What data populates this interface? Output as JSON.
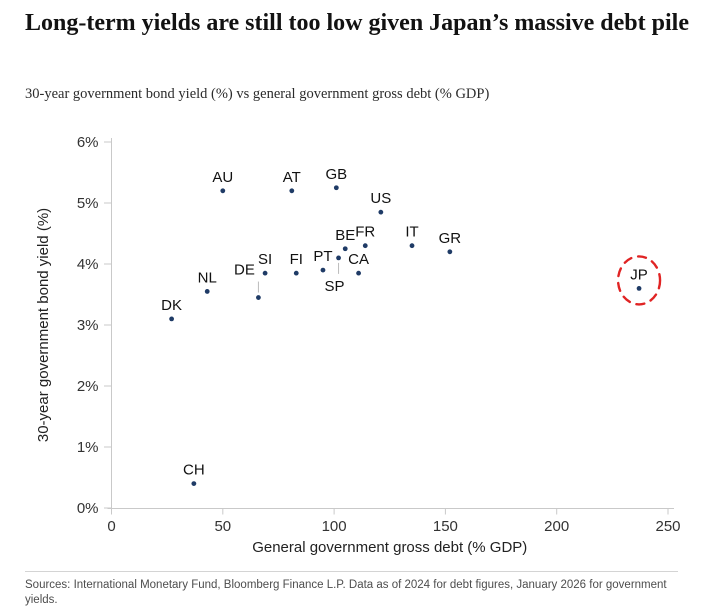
{
  "header": {
    "title": "Long-term yields are still too low given Japan’s massive debt pile",
    "subtitle": "30-year government bond yield (%) vs general government gross debt (% GDP)"
  },
  "footer": {
    "sources": "Sources: International Monetary Fund, Bloomberg Finance L.P. Data as of 2024 for debt figures, January 2026 for government yields."
  },
  "colors": {
    "dot": "#1f3b66",
    "highlight_circle": "#e02424",
    "axis": "#c9c9c9",
    "leader_line": "#bbbbbb",
    "tick_text": "#333333",
    "point_label": "#111111"
  },
  "chart_data": {
    "type": "scatter",
    "title": "Long-term yields are still too low given Japan’s massive debt pile",
    "xlabel": "General government gross debt (% GDP)",
    "ylabel": "30-year government bond yield (%)",
    "xlim": [
      0,
      250
    ],
    "ylim": [
      0,
      6
    ],
    "x_ticks": [
      0,
      50,
      100,
      150,
      200,
      250
    ],
    "y_tick_labels": [
      "0%",
      "1%",
      "2%",
      "3%",
      "4%",
      "5%",
      "6%"
    ],
    "grid": false,
    "legend": "none",
    "points": [
      {
        "label": "DK",
        "x": 27,
        "y": 3.1,
        "label_pos": "above"
      },
      {
        "label": "CH",
        "x": 37,
        "y": 0.4,
        "label_pos": "above"
      },
      {
        "label": "NL",
        "x": 43,
        "y": 3.55,
        "label_pos": "above"
      },
      {
        "label": "AU",
        "x": 50,
        "y": 5.2,
        "label_pos": "above"
      },
      {
        "label": "DE",
        "x": 66,
        "y": 3.45,
        "label_pos": "upper-left",
        "leader": true
      },
      {
        "label": "SI",
        "x": 69,
        "y": 3.85,
        "label_pos": "above"
      },
      {
        "label": "AT",
        "x": 81,
        "y": 5.2,
        "label_pos": "above"
      },
      {
        "label": "FI",
        "x": 83,
        "y": 3.85,
        "label_pos": "above"
      },
      {
        "label": "PT",
        "x": 95,
        "y": 3.9,
        "label_pos": "above"
      },
      {
        "label": "GB",
        "x": 101,
        "y": 5.25,
        "label_pos": "above"
      },
      {
        "label": "SP",
        "x": 102,
        "y": 4.1,
        "label_pos": "below",
        "leader": true
      },
      {
        "label": "BE",
        "x": 105,
        "y": 4.25,
        "label_pos": "above"
      },
      {
        "label": "CA",
        "x": 111,
        "y": 3.85,
        "label_pos": "above"
      },
      {
        "label": "FR",
        "x": 114,
        "y": 4.3,
        "label_pos": "above"
      },
      {
        "label": "US",
        "x": 121,
        "y": 4.85,
        "label_pos": "above"
      },
      {
        "label": "IT",
        "x": 135,
        "y": 4.3,
        "label_pos": "above"
      },
      {
        "label": "GR",
        "x": 152,
        "y": 4.2,
        "label_pos": "above"
      },
      {
        "label": "JP",
        "x": 237,
        "y": 3.6,
        "label_pos": "above",
        "highlight": true
      }
    ]
  }
}
